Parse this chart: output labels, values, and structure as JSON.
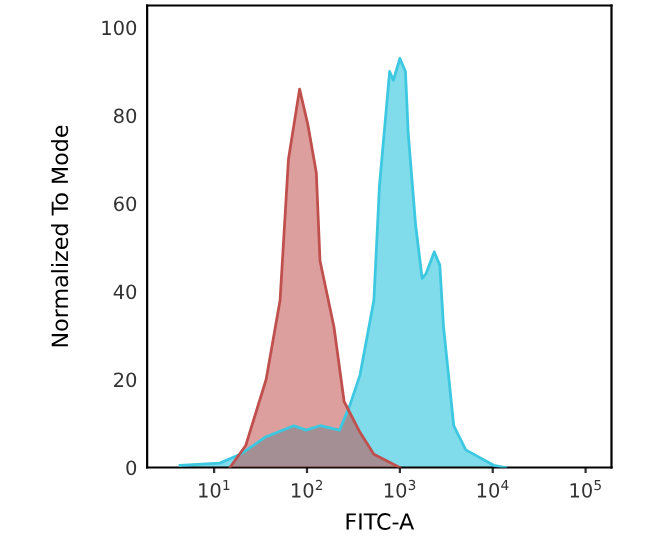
{
  "chart_data": {
    "type": "area",
    "xlabel": "FITC-A",
    "ylabel": "Normalized To Mode",
    "log": "x",
    "xlim": [
      1.9,
      190000
    ],
    "ylim": [
      0,
      105
    ],
    "xticks": [
      {
        "value": 10,
        "label": "10$^{1}$"
      },
      {
        "value": 100,
        "label": "10$^{2}$"
      },
      {
        "value": 1000,
        "label": "10$^{3}$"
      },
      {
        "value": 10000,
        "label": "10$^{4}$"
      },
      {
        "value": 100000,
        "label": "10$^{5}$"
      }
    ],
    "yticks": [
      0,
      20,
      40,
      60,
      80,
      100
    ],
    "grid": false,
    "series": [
      {
        "color": "#3cc8e0",
        "x": [
          4.3,
          11.5,
          19.1,
          36.3,
          72.4,
          97.7,
          138,
          224,
          288,
          372,
          525,
          603,
          776,
          851,
          1000,
          1148,
          1230,
          1479,
          1738,
          1905,
          2344,
          2692,
          2951,
          3802,
          5129,
          10233,
          13804
        ],
        "values": [
          0.5,
          1,
          3,
          7,
          9.5,
          8.5,
          9.5,
          8.5,
          14,
          21,
          38,
          64,
          90,
          88,
          93,
          90,
          76,
          55,
          43,
          44,
          49,
          46,
          32,
          9.5,
          4,
          0.5,
          0
        ]
      },
      {
        "color": "#c0504d",
        "x": [
          14.8,
          21.9,
          36.3,
          51.3,
          63.1,
          83.2,
          102,
          126,
          138,
          195,
          251,
          372,
          525,
          1000
        ],
        "values": [
          0,
          5,
          20,
          38,
          70,
          86,
          78,
          67,
          47,
          32,
          15,
          8,
          3,
          0
        ]
      }
    ]
  }
}
